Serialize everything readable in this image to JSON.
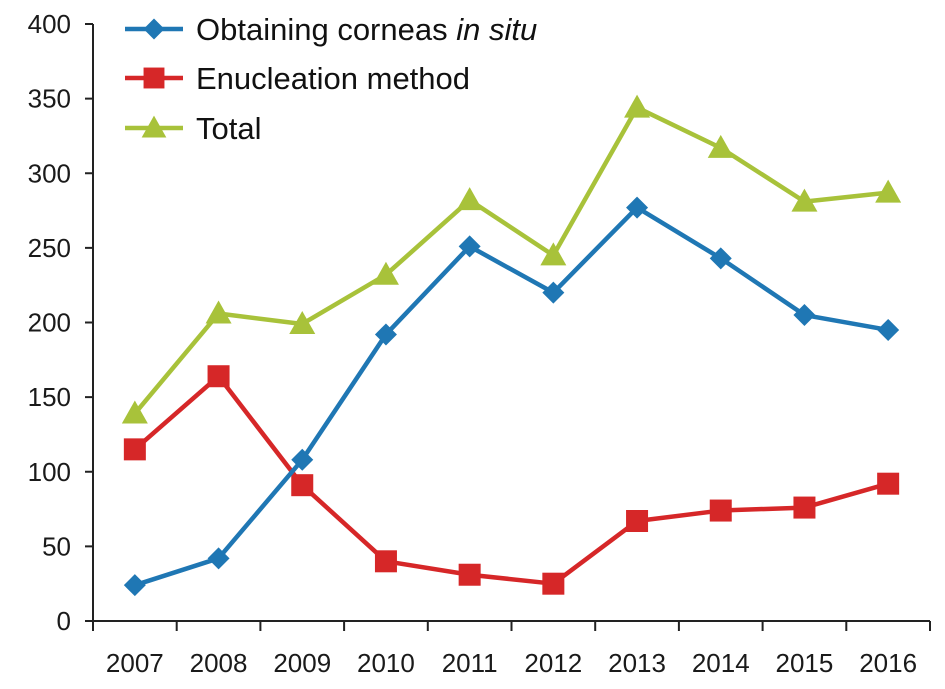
{
  "chart_data": {
    "type": "line",
    "title": "",
    "xlabel": "",
    "ylabel": "",
    "categories": [
      "2007",
      "2008",
      "2009",
      "2010",
      "2011",
      "2012",
      "2013",
      "2014",
      "2015",
      "2016"
    ],
    "ylim": [
      0,
      400
    ],
    "yticks": [
      0,
      50,
      100,
      150,
      200,
      250,
      300,
      350,
      400
    ],
    "grid": false,
    "legend_position": "top-left",
    "series": [
      {
        "name": "Obtaining corneas in situ",
        "legend_text": "Obtaining corneas ",
        "legend_italic": "in situ",
        "color": "#1f77b4",
        "marker": "diamond",
        "values": [
          24,
          42,
          108,
          192,
          251,
          220,
          277,
          243,
          205,
          195
        ]
      },
      {
        "name": "Enucleation method",
        "legend_text": "Enucleation method",
        "legend_italic": "",
        "color": "#d62728",
        "marker": "square",
        "values": [
          115,
          164,
          91,
          40,
          31,
          25,
          67,
          74,
          76,
          92
        ]
      },
      {
        "name": "Total",
        "legend_text": "Total",
        "legend_italic": "",
        "color": "#a8c23a",
        "marker": "triangle",
        "values": [
          139,
          206,
          199,
          232,
          282,
          245,
          344,
          317,
          281,
          287
        ]
      }
    ]
  }
}
